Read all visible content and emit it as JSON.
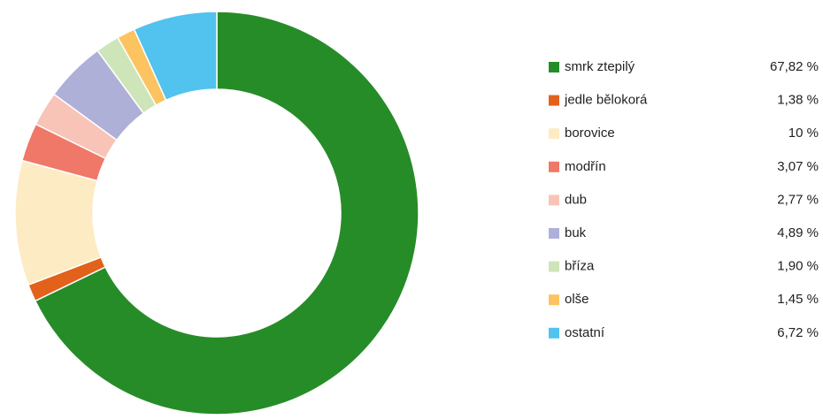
{
  "chart_data": {
    "type": "donut",
    "categories": [
      "smrk ztepilý",
      "jedle bělokorá",
      "borovice",
      "modřín",
      "dub",
      "buk",
      "bříza",
      "olše",
      "ostatní"
    ],
    "values": [
      67.82,
      1.38,
      10,
      3.07,
      2.77,
      4.89,
      1.9,
      1.45,
      6.72
    ],
    "value_labels": [
      "67,82 %",
      "1,38 %",
      "10 %",
      "3,07 %",
      "2,77 %",
      "4,89 %",
      "1,90 %",
      "1,45 %",
      "6,72 %"
    ],
    "colors": [
      "#268c28",
      "#e2621b",
      "#fdebc4",
      "#f07868",
      "#f8c4b8",
      "#aeb0d8",
      "#cde5b8",
      "#fbc460",
      "#52c2ee"
    ],
    "legend": "right"
  }
}
